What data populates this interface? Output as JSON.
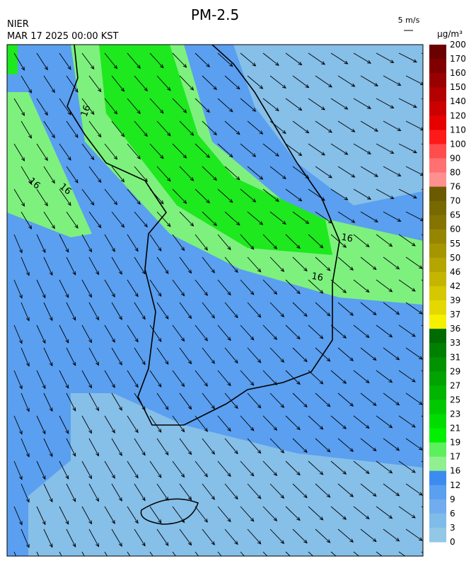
{
  "header": {
    "title": "PM-2.5",
    "agency": "NIER",
    "timestamp": "MAR 17 2025 00:00 KST"
  },
  "wind_key": {
    "label": "5 m/s"
  },
  "legend": {
    "unit": "µg/m³",
    "labels": [
      "200",
      "170",
      "160",
      "150",
      "140",
      "120",
      "110",
      "100",
      "90",
      "80",
      "76",
      "70",
      "65",
      "60",
      "55",
      "50",
      "46",
      "42",
      "39",
      "37",
      "36",
      "33",
      "31",
      "29",
      "27",
      "25",
      "23",
      "21",
      "19",
      "17",
      "16",
      "12",
      "9",
      "6",
      "3",
      "0"
    ],
    "colors": [
      "#6b0000",
      "#800000",
      "#990000",
      "#b30000",
      "#cc0000",
      "#e60000",
      "#ff1a1a",
      "#ff4d4d",
      "#ff7070",
      "#ff9090",
      "#6b5a00",
      "#786800",
      "#857500",
      "#958500",
      "#a59500",
      "#b5a500",
      "#c5b500",
      "#d5c800",
      "#e5d800",
      "#f5f000",
      "#006b00",
      "#008000",
      "#009200",
      "#00a300",
      "#00b400",
      "#00c800",
      "#00dc00",
      "#00f000",
      "#5cf05c",
      "#90f090",
      "#3c8cf0",
      "#5a9ff0",
      "#70acee",
      "#80bcea",
      "#92c8e6"
    ]
  },
  "map": {
    "contour_labels": [
      "16",
      "16",
      "16",
      "16",
      "16"
    ]
  }
}
